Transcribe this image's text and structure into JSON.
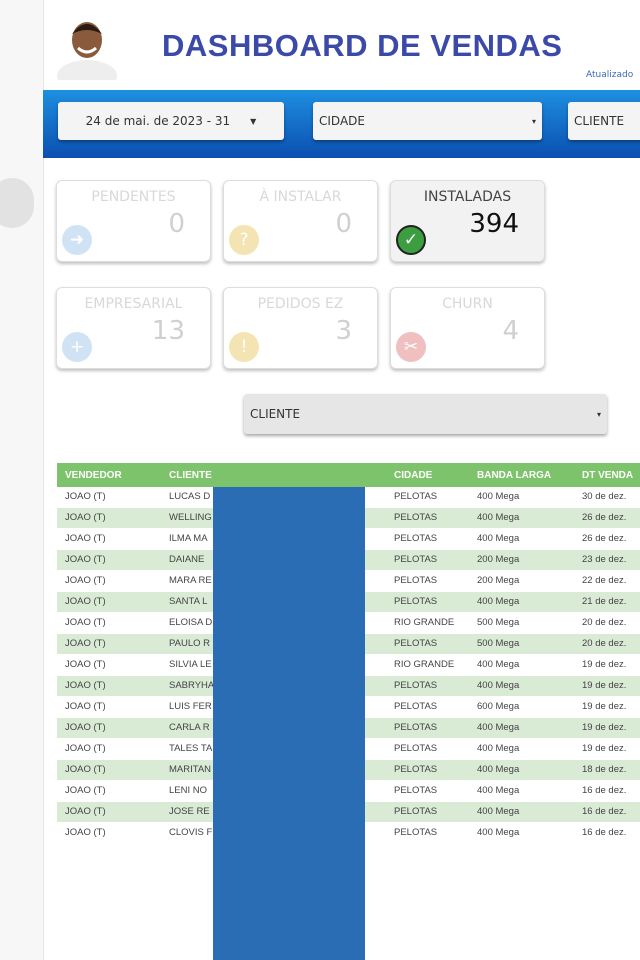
{
  "header": {
    "title": "DASHBOARD DE VENDAS",
    "updated": "Atualizado"
  },
  "filters": {
    "date": "24 de mai. de 2023 - 31",
    "city": "CIDADE",
    "client": "CLIENTE"
  },
  "cards": [
    {
      "label": "PENDENTES",
      "value": 0
    },
    {
      "label": "À INSTALAR",
      "value": 0
    },
    {
      "label": "INSTALADAS",
      "value": 394
    },
    {
      "label": "EMPRESARIAL",
      "value": 13
    },
    {
      "label": "PEDIDOS EZ",
      "value": 3
    },
    {
      "label": "CHURN",
      "value": 4
    }
  ],
  "client_filter": "CLIENTE",
  "table": {
    "columns": [
      "VENDEDOR",
      "CLIENTE",
      "CIDADE",
      "BANDA LARGA",
      "DT VENDA"
    ],
    "rows": [
      [
        "JOAO (T)",
        "LUCAS D",
        "PELOTAS",
        "400 Mega",
        "30 de dez."
      ],
      [
        "JOAO (T)",
        "WELLING SILVA",
        "PELOTAS",
        "400 Mega",
        "26 de dez."
      ],
      [
        "JOAO (T)",
        "ILMA MA",
        "PELOTAS",
        "400 Mega",
        "26 de dez."
      ],
      [
        "JOAO (T)",
        "DAIANE",
        "PELOTAS",
        "200 Mega",
        "23 de dez."
      ],
      [
        "JOAO (T)",
        "MARA RE DOMINC",
        "PELOTAS",
        "200 Mega",
        "22 de dez."
      ],
      [
        "JOAO (T)",
        "SANTA L",
        "PELOTAS",
        "400 Mega",
        "21 de dez."
      ],
      [
        "JOAO (T)",
        "ELOISA D",
        "RIO GRANDE",
        "500 Mega",
        "20 de dez."
      ],
      [
        "JOAO (T)",
        "PAULO R",
        "PELOTAS",
        "500 Mega",
        "20 de dez."
      ],
      [
        "JOAO (T)",
        "SILVIA LE",
        "RIO GRANDE",
        "400 Mega",
        "19 de dez."
      ],
      [
        "JOAO (T)",
        "SABRYHA",
        "PELOTAS",
        "400 Mega",
        "19 de dez."
      ],
      [
        "JOAO (T)",
        "LUIS FER",
        "PELOTAS",
        "600 Mega",
        "19 de dez."
      ],
      [
        "JOAO (T)",
        "CARLA R",
        "PELOTAS",
        "400 Mega",
        "19 de dez."
      ],
      [
        "JOAO (T)",
        "TALES TA",
        "PELOTAS",
        "400 Mega",
        "19 de dez."
      ],
      [
        "JOAO (T)",
        "MARITAN",
        "PELOTAS",
        "400 Mega",
        "18 de dez."
      ],
      [
        "JOAO (T)",
        "LENI NO",
        "PELOTAS",
        "400 Mega",
        "16 de dez."
      ],
      [
        "JOAO (T)",
        "JOSE RE",
        "PELOTAS",
        "400 Mega",
        "16 de dez."
      ],
      [
        "JOAO (T)",
        "CLOVIS F",
        "PELOTAS",
        "400 Mega",
        "16 de dez."
      ]
    ]
  }
}
